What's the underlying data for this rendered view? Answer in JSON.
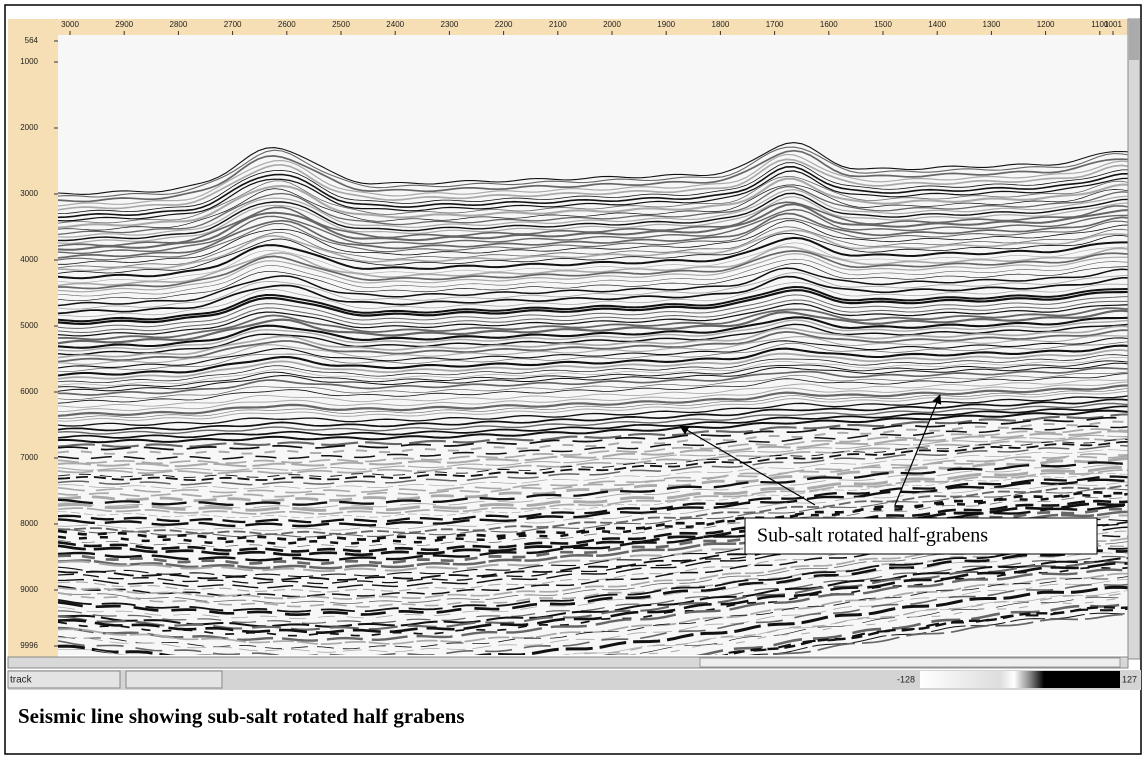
{
  "top_axis": {
    "labels": [
      "3000",
      "2900",
      "2800",
      "2700",
      "2600",
      "2500",
      "2400",
      "2300",
      "2200",
      "2100",
      "2000",
      "1900",
      "1800",
      "1700",
      "1600",
      "1500",
      "1400",
      "1300",
      "1200",
      "1100",
      "1001"
    ]
  },
  "left_axis": {
    "labels": [
      "564",
      "1000",
      "2000",
      "3000",
      "4000",
      "5000",
      "6000",
      "7000",
      "8000",
      "9000",
      "9996"
    ]
  },
  "annotation": {
    "text": "Sub-salt rotated half-grabens"
  },
  "status_bar": {
    "field": "track",
    "min": "-128",
    "max": "127"
  },
  "caption": "Seismic line showing sub-salt rotated half grabens"
}
